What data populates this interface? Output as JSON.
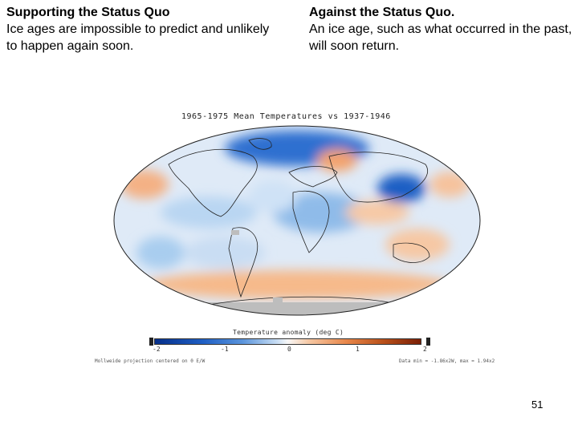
{
  "left_column": {
    "heading": "Supporting the Status Quo",
    "text": "Ice ages are impossible to predict and unlikely to happen again soon."
  },
  "right_column": {
    "heading": "Against the Status Quo.",
    "text": "An ice age, such as what occurred in the past, will soon return."
  },
  "map": {
    "title": "1965-1975 Mean Temperatures vs 1937-1946",
    "colorbar_title": "Temperature anomaly (deg C)",
    "colorbar_ticks": [
      "-2",
      "-1",
      "0",
      "1",
      "2"
    ],
    "projection_note": "Mollweide projection centered on 0 E/W",
    "data_note": "Data min = -1.86x2W, max = 1.94x2",
    "colors": {
      "cold": "#1f5fc4",
      "cool": "#a9cdef",
      "neutral": "#f2f6fb",
      "warm": "#f6b98a",
      "hot": "#7a1f06",
      "missing": "#bdbdbd"
    }
  },
  "page_number": "51"
}
